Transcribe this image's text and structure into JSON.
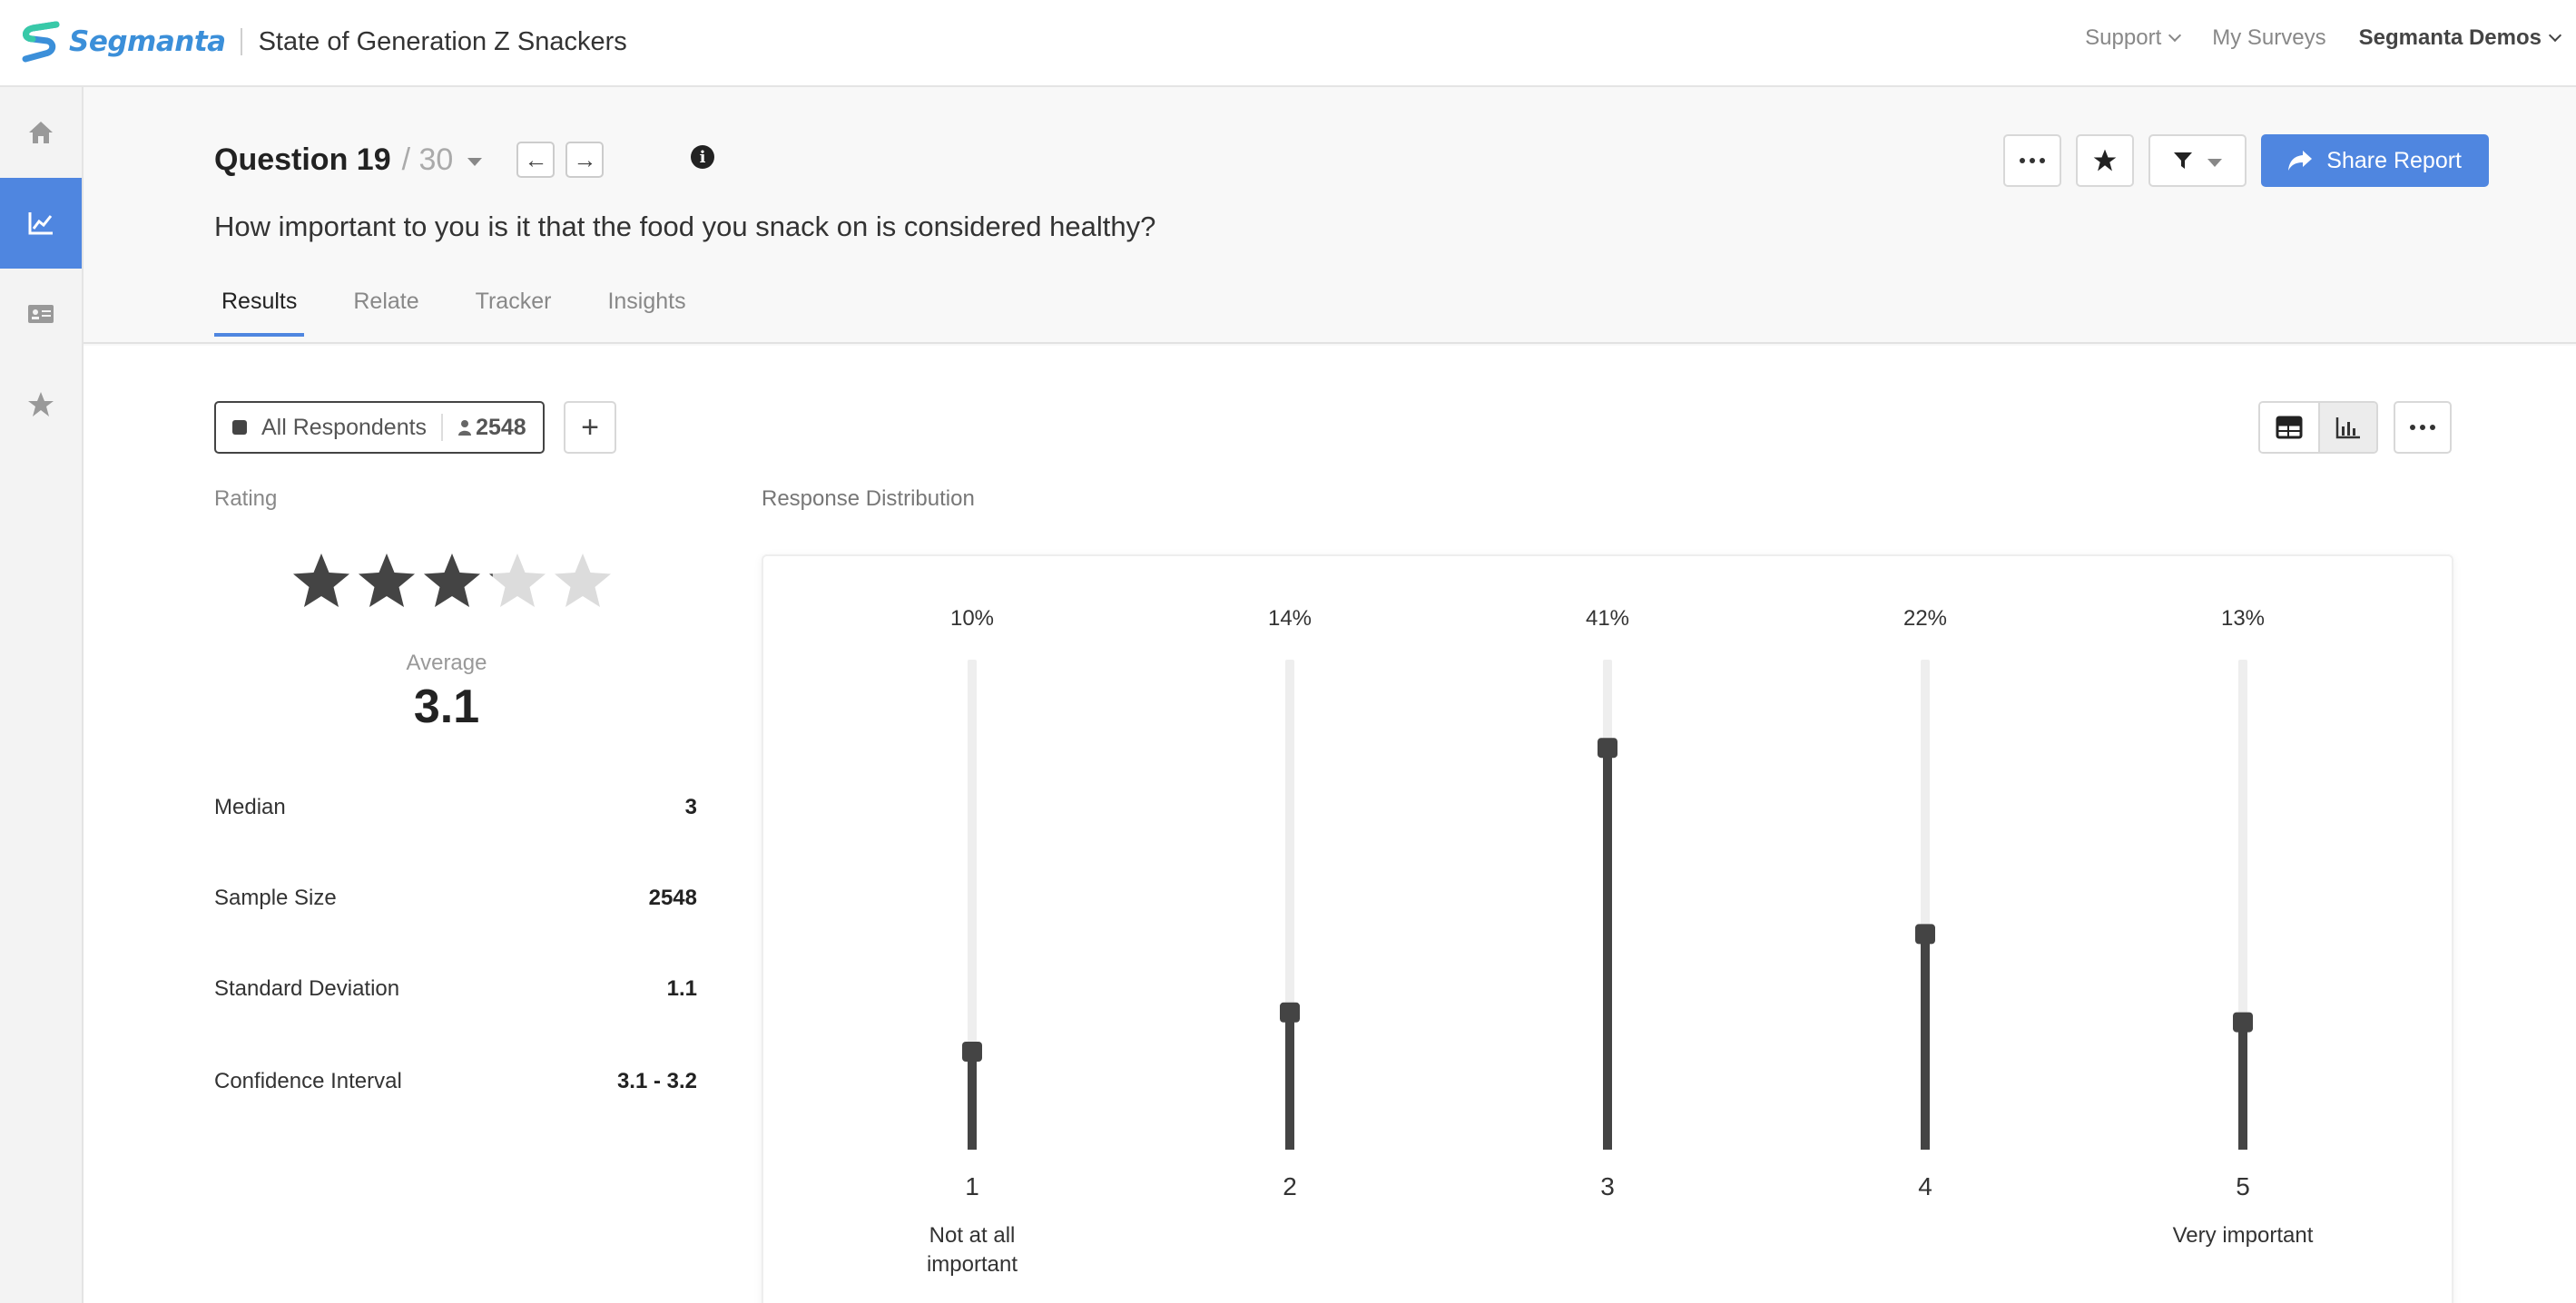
{
  "app": {
    "brand": "Segmanta",
    "survey_title": "State of Generation Z Snackers"
  },
  "topnav": {
    "support": "Support",
    "my_surveys": "My Surveys",
    "account": "Segmanta Demos"
  },
  "sidebar": {
    "items": [
      {
        "icon": "home-icon"
      },
      {
        "icon": "analytics-icon",
        "active": true
      },
      {
        "icon": "contact-card-icon"
      },
      {
        "icon": "star-icon"
      }
    ]
  },
  "question": {
    "title": "Question 19",
    "total": "/ 30",
    "text": "How important to you is it that the food you snack on is considered healthy?"
  },
  "actions": {
    "share_label": "Share Report"
  },
  "tabs": [
    {
      "label": "Results",
      "active": true
    },
    {
      "label": "Relate"
    },
    {
      "label": "Tracker"
    },
    {
      "label": "Insights"
    }
  ],
  "segment": {
    "label": "All Respondents",
    "count": "2548"
  },
  "rating": {
    "label": "Rating",
    "average_label": "Average",
    "average": "3.1",
    "stars_value": 3.1,
    "stars_max": 5,
    "stats": [
      {
        "label": "Median",
        "value": "3"
      },
      {
        "label": "Sample Size",
        "value": "2548"
      },
      {
        "label": "Standard Deviation",
        "value": "1.1"
      },
      {
        "label": "Confidence Interval",
        "value": "3.1 - 3.2"
      }
    ]
  },
  "distribution": {
    "label": "Response Distribution"
  },
  "chart_data": {
    "type": "bar",
    "categories": [
      "1",
      "2",
      "3",
      "4",
      "5"
    ],
    "values": [
      10,
      14,
      41,
      22,
      13
    ],
    "value_labels": [
      "10%",
      "14%",
      "41%",
      "22%",
      "13%"
    ],
    "category_descriptions": [
      "Not at all important",
      "",
      "",
      "",
      "Very important"
    ],
    "ylim": [
      0,
      50
    ],
    "colors": {
      "bar": "#444444",
      "track": "#eeeeee"
    }
  },
  "colors": {
    "accent": "#4f86e0",
    "dark": "#444444"
  }
}
